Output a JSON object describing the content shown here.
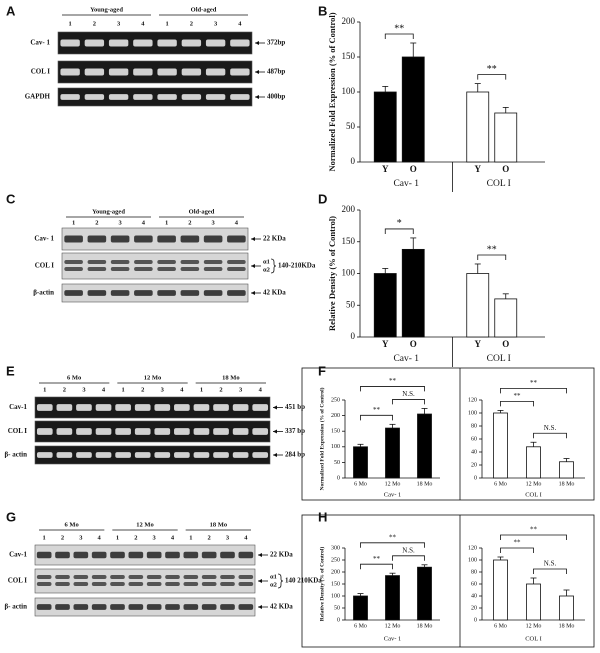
{
  "panel_labels": [
    "A",
    "B",
    "C",
    "D",
    "E",
    "F",
    "G",
    "H"
  ],
  "gels": [
    {
      "groups": [
        {
          "name": "Young-aged",
          "lanes": [
            "1",
            "2",
            "3",
            "4"
          ]
        },
        {
          "name": "Old-aged",
          "lanes": [
            "1",
            "2",
            "3",
            "4"
          ]
        }
      ],
      "rows": [
        {
          "label": "Cav- 1",
          "marker": "372bp"
        },
        {
          "label": "COL I",
          "marker": "487bp"
        },
        {
          "label": "GAPDH",
          "marker": "400bp"
        }
      ]
    },
    {
      "groups": [
        {
          "name": "Young-aged",
          "lanes": [
            "1",
            "2",
            "3",
            "4"
          ]
        },
        {
          "name": "Old-aged",
          "lanes": [
            "1",
            "2",
            "3",
            "4"
          ]
        }
      ],
      "rows": [
        {
          "label": "Cav- 1",
          "marker": "22 KDa"
        },
        {
          "label": "COL I",
          "subbands": [
            "α1",
            "α2"
          ],
          "marker": "140-210KDa"
        },
        {
          "label": "β-actin",
          "marker": "42 KDa"
        }
      ]
    },
    {
      "groups": [
        {
          "name": "6 Mo",
          "lanes": [
            "1",
            "2",
            "3",
            "4"
          ]
        },
        {
          "name": "12 Mo",
          "lanes": [
            "1",
            "2",
            "3",
            "4"
          ]
        },
        {
          "name": "18 Mo",
          "lanes": [
            "1",
            "2",
            "3",
            "4"
          ]
        }
      ],
      "rows": [
        {
          "label": "Cav-1",
          "marker": "451 bp"
        },
        {
          "label": "COL I",
          "marker": "337 bp"
        },
        {
          "label": "β- actin",
          "marker": "284 bp"
        }
      ]
    },
    {
      "groups": [
        {
          "name": "6 Mo",
          "lanes": [
            "1",
            "2",
            "3",
            "4"
          ]
        },
        {
          "name": "12 Mo",
          "lanes": [
            "1",
            "2",
            "3",
            "4"
          ]
        },
        {
          "name": "18 Mo",
          "lanes": [
            "1",
            "2",
            "3",
            "4"
          ]
        }
      ],
      "rows": [
        {
          "label": "Cav-1",
          "marker": "22 KDa"
        },
        {
          "label": "COL I",
          "subbands": [
            "α1",
            "α2"
          ],
          "marker": "140 210KDa"
        },
        {
          "label": "β- actin",
          "marker": "42 KDa"
        }
      ]
    }
  ],
  "chart_data": [
    {
      "type": "bar",
      "ylabel": "Normalized Fold Expression (% of Control)",
      "ylim": [
        0,
        200
      ],
      "yticks": [
        0,
        50,
        100,
        150,
        200
      ],
      "groups": [
        {
          "name": "Cav- 1",
          "categories": [
            "Y",
            "O"
          ],
          "values": [
            100,
            150
          ],
          "errors": [
            8,
            20
          ],
          "color": "#000000",
          "comparisons": [
            {
              "label": "**",
              "between": [
                0,
                1
              ]
            }
          ]
        },
        {
          "name": "COL I",
          "categories": [
            "Y",
            "O"
          ],
          "values": [
            100,
            70
          ],
          "errors": [
            12,
            8
          ],
          "color": "#ffffff",
          "comparisons": [
            {
              "label": "**",
              "between": [
                0,
                1
              ]
            }
          ]
        }
      ]
    },
    {
      "type": "bar",
      "ylabel": "Relative Density (% of Control)",
      "ylim": [
        0,
        200
      ],
      "yticks": [
        0,
        50,
        100,
        150,
        200
      ],
      "groups": [
        {
          "name": "Cav- 1",
          "categories": [
            "Y",
            "O"
          ],
          "values": [
            100,
            138
          ],
          "errors": [
            8,
            18
          ],
          "color": "#000000",
          "comparisons": [
            {
              "label": "*",
              "between": [
                0,
                1
              ]
            }
          ]
        },
        {
          "name": "COL I",
          "categories": [
            "Y",
            "O"
          ],
          "values": [
            100,
            60
          ],
          "errors": [
            15,
            8
          ],
          "color": "#ffffff",
          "comparisons": [
            {
              "label": "**",
              "between": [
                0,
                1
              ]
            }
          ]
        }
      ]
    },
    {
      "type": "bar",
      "ylabel": "Normalized Fold Expression (% of Control)",
      "ylim": [
        0,
        250
      ],
      "yticks": [
        0,
        50,
        100,
        150,
        200,
        250
      ],
      "groups": [
        {
          "name": "Cav- 1",
          "categories": [
            "6 Mo",
            "12 Mo",
            "18 Mo"
          ],
          "values": [
            100,
            160,
            205
          ],
          "errors": [
            8,
            12,
            18
          ],
          "color": "#000000",
          "comparisons": [
            {
              "label": "N.S.",
              "between": [
                1,
                2
              ]
            },
            {
              "label": "**",
              "between": [
                0,
                1
              ]
            },
            {
              "label": "**",
              "between": [
                0,
                2
              ]
            }
          ]
        }
      ]
    },
    {
      "type": "bar",
      "ylim": [
        0,
        120
      ],
      "yticks": [
        0,
        20,
        40,
        60,
        80,
        100,
        120
      ],
      "groups": [
        {
          "name": "COL I",
          "categories": [
            "6 Mo",
            "12 Mo",
            "18 Mo"
          ],
          "values": [
            100,
            48,
            25
          ],
          "errors": [
            4,
            7,
            5
          ],
          "color": "#ffffff",
          "comparisons": [
            {
              "label": "N.S.",
              "between": [
                1,
                2
              ]
            },
            {
              "label": "**",
              "between": [
                0,
                1
              ]
            },
            {
              "label": "**",
              "between": [
                0,
                2
              ]
            }
          ]
        }
      ]
    },
    {
      "type": "bar",
      "ylabel": "Relative Density (% of Control)",
      "ylim": [
        0,
        300
      ],
      "yticks": [
        0,
        50,
        100,
        150,
        200,
        250,
        300
      ],
      "groups": [
        {
          "name": "Cav- 1",
          "categories": [
            "6 Mo",
            "12 Mo",
            "18 Mo"
          ],
          "values": [
            100,
            185,
            220
          ],
          "errors": [
            10,
            10,
            10
          ],
          "color": "#000000",
          "comparisons": [
            {
              "label": "N.S.",
              "between": [
                1,
                2
              ]
            },
            {
              "label": "**",
              "between": [
                0,
                1
              ]
            },
            {
              "label": "**",
              "between": [
                0,
                2
              ]
            }
          ]
        }
      ]
    },
    {
      "type": "bar",
      "ylim": [
        0,
        120
      ],
      "yticks": [
        0,
        20,
        40,
        60,
        80,
        100,
        120
      ],
      "groups": [
        {
          "name": "COL I",
          "categories": [
            "6 Mo",
            "12 Mo",
            "18 Mo"
          ],
          "values": [
            100,
            60,
            40
          ],
          "errors": [
            5,
            10,
            10
          ],
          "color": "#ffffff",
          "comparisons": [
            {
              "label": "N.S.",
              "between": [
                1,
                2
              ]
            },
            {
              "label": "**",
              "between": [
                0,
                1
              ]
            },
            {
              "label": "**",
              "between": [
                0,
                2
              ]
            }
          ]
        }
      ]
    }
  ]
}
